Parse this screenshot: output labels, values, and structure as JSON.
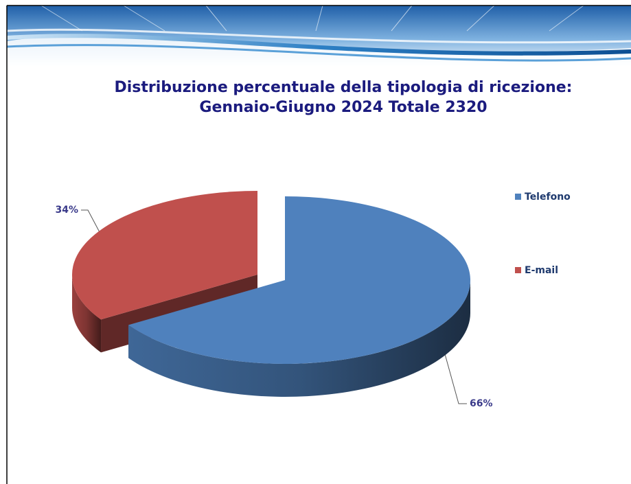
{
  "chart_data": {
    "type": "pie",
    "title": "Distribuzione percentuale della tipologia di ricezione:",
    "subtitle": "Gennaio-Giugno  2024     Totale 2320",
    "categories": [
      "Telefono",
      "E-mail"
    ],
    "values": [
      66,
      34
    ],
    "value_labels": [
      "66%",
      "34%"
    ],
    "colors": [
      "#4f81bd",
      "#c0504d"
    ],
    "legend": "right"
  }
}
